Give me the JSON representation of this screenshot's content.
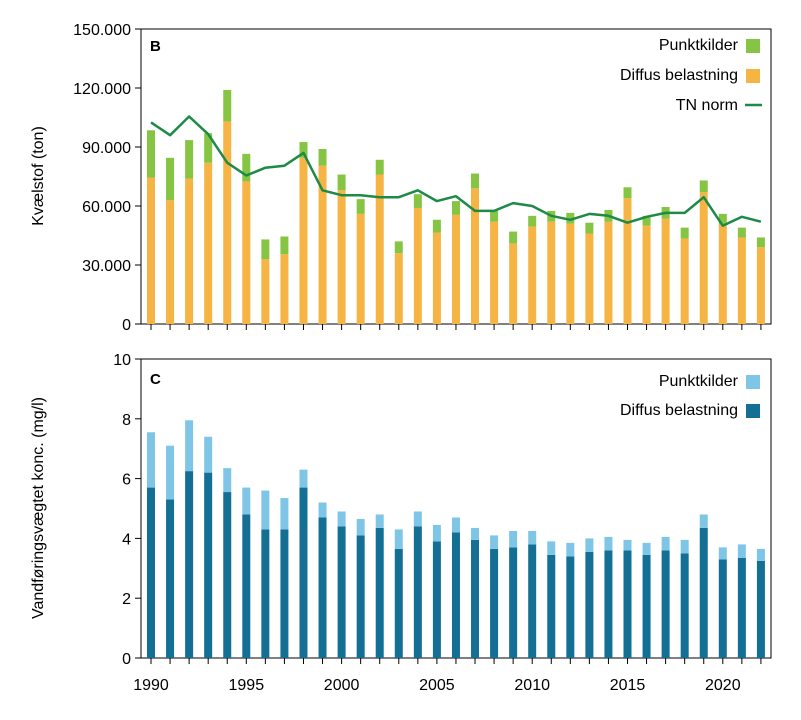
{
  "chart_data": [
    {
      "panel": "B",
      "type": "bar",
      "stacked": true,
      "ylabel": "Kvælstof (ton)",
      "ylim": [
        0,
        150000
      ],
      "yticks": [
        0,
        30000,
        60000,
        90000,
        120000,
        150000
      ],
      "ytick_labels": [
        "0",
        "30.000",
        "60.000",
        "90.000",
        "120.000",
        "150.000"
      ],
      "x": [
        1990,
        1991,
        1992,
        1993,
        1994,
        1995,
        1996,
        1997,
        1998,
        1999,
        2000,
        2001,
        2002,
        2003,
        2004,
        2005,
        2006,
        2007,
        2008,
        2009,
        2010,
        2011,
        2012,
        2013,
        2014,
        2015,
        2016,
        2017,
        2018,
        2019,
        2020,
        2021,
        2022
      ],
      "series": [
        {
          "name": "Diffus belastning",
          "color": "#f5b443",
          "values": [
            74500,
            63000,
            74000,
            82000,
            103000,
            72500,
            33000,
            35500,
            84500,
            80500,
            68000,
            56000,
            76000,
            36000,
            59000,
            46500,
            55500,
            69000,
            52000,
            41000,
            49500,
            52000,
            51000,
            46000,
            52000,
            64000,
            50000,
            53500,
            43500,
            67000,
            50500,
            44000,
            39000
          ]
        },
        {
          "name": "Punktkilder",
          "color": "#86c443",
          "values": [
            24000,
            21500,
            19500,
            15000,
            16000,
            14000,
            10000,
            9000,
            8000,
            8500,
            8000,
            7500,
            7500,
            6000,
            7000,
            6500,
            7000,
            7500,
            5500,
            6000,
            5500,
            5500,
            5500,
            5500,
            6000,
            5500,
            5000,
            6000,
            5500,
            6000,
            5500,
            5000,
            5000
          ]
        },
        {
          "name": "TN norm",
          "type": "line",
          "color": "#1e8a46",
          "values": [
            102500,
            96000,
            105500,
            96500,
            82000,
            75500,
            79500,
            80500,
            87000,
            68000,
            65500,
            65500,
            64500,
            64500,
            68000,
            62500,
            65000,
            57500,
            57500,
            61500,
            60000,
            55000,
            53000,
            56000,
            55000,
            51500,
            54500,
            56500,
            56500,
            64500,
            50000,
            54500,
            52000
          ]
        }
      ],
      "legend": [
        "Punktkilder",
        "Diffus belastning",
        "TN norm"
      ],
      "legend_position": "top-right"
    },
    {
      "panel": "C",
      "type": "bar",
      "stacked": true,
      "ylabel": "Vandføringsvægtet konc. (mg/l)",
      "ylim": [
        0,
        10
      ],
      "yticks": [
        0,
        2,
        4,
        6,
        8,
        10
      ],
      "ytick_labels": [
        "0",
        "2",
        "4",
        "6",
        "8",
        "10"
      ],
      "x": [
        1990,
        1991,
        1992,
        1993,
        1994,
        1995,
        1996,
        1997,
        1998,
        1999,
        2000,
        2001,
        2002,
        2003,
        2004,
        2005,
        2006,
        2007,
        2008,
        2009,
        2010,
        2011,
        2012,
        2013,
        2014,
        2015,
        2016,
        2017,
        2018,
        2019,
        2020,
        2021,
        2022
      ],
      "xticks": [
        1990,
        1995,
        2000,
        2005,
        2010,
        2015,
        2020
      ],
      "series": [
        {
          "name": "Diffus belastning",
          "color": "#136f93",
          "values": [
            5.7,
            5.3,
            6.25,
            6.2,
            5.55,
            4.8,
            4.3,
            4.3,
            5.7,
            4.7,
            4.4,
            4.1,
            4.35,
            3.65,
            4.4,
            3.9,
            4.2,
            3.95,
            3.65,
            3.7,
            3.8,
            3.45,
            3.4,
            3.55,
            3.6,
            3.6,
            3.45,
            3.6,
            3.5,
            4.35,
            3.3,
            3.35,
            3.25
          ]
        },
        {
          "name": "Punktkilder",
          "color": "#7fc6e6",
          "values": [
            1.85,
            1.8,
            1.7,
            1.2,
            0.8,
            0.9,
            1.3,
            1.05,
            0.6,
            0.5,
            0.5,
            0.55,
            0.45,
            0.65,
            0.5,
            0.55,
            0.5,
            0.4,
            0.45,
            0.55,
            0.45,
            0.45,
            0.45,
            0.45,
            0.45,
            0.35,
            0.4,
            0.45,
            0.45,
            0.45,
            0.4,
            0.45,
            0.4
          ]
        }
      ],
      "legend": [
        "Punktkilder",
        "Diffus belastning"
      ],
      "legend_position": "top-right"
    }
  ]
}
